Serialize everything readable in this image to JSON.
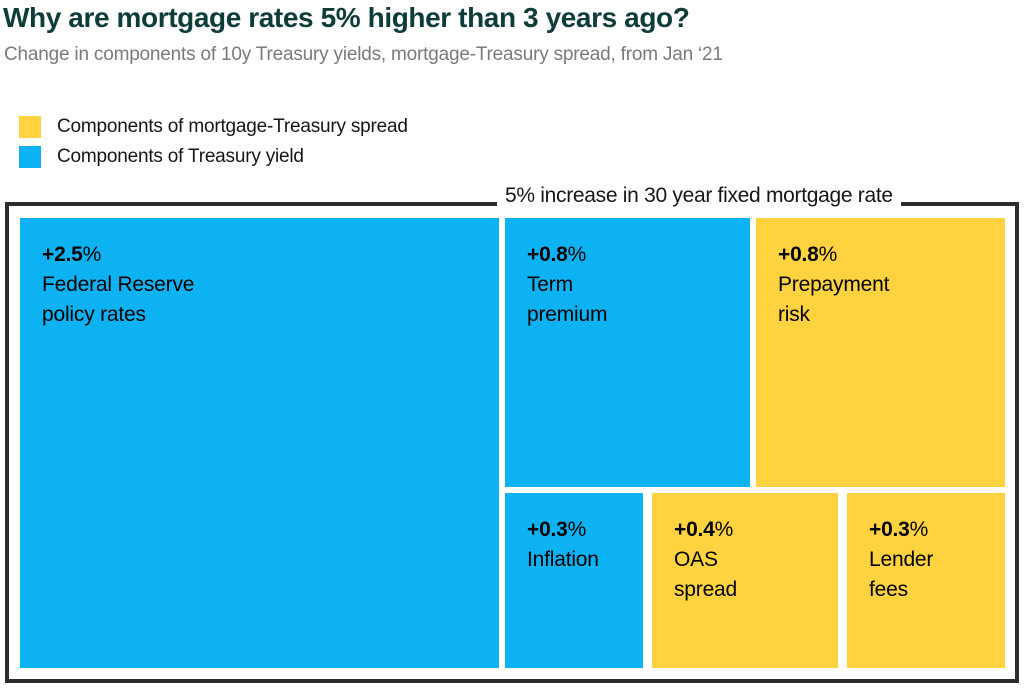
{
  "header": {
    "title": "Why are mortgage rates 5% higher than 3 years ago?",
    "subtitle": "Change in components of 10y Treasury yields, mortgage-Treasury spread, from Jan ‘21"
  },
  "legend": {
    "items": [
      {
        "label": "Components of mortgage-Treasury spread",
        "color": "#ffd23f"
      },
      {
        "label": "Components of Treasury yield",
        "color": "#0db2f3"
      }
    ]
  },
  "chart_data": {
    "type": "treemap",
    "annotation": "5% increase in 30 year fixed mortgage rate",
    "groups": [
      {
        "name": "Components of mortgage-Treasury spread",
        "color": "#ffd23f"
      },
      {
        "name": "Components of Treasury yield",
        "color": "#0db2f3"
      }
    ],
    "blocks": [
      {
        "id": "federal-reserve-policy-rates",
        "group": "Treasury yield",
        "value": 2.5,
        "display_value": "+2.5",
        "unit": "%",
        "line1": "Federal Reserve",
        "line2": "policy rates",
        "color": "#0db2f3"
      },
      {
        "id": "term-premium",
        "group": "Treasury yield",
        "value": 0.8,
        "display_value": "+0.8",
        "unit": "%",
        "line1": "Term",
        "line2": "premium",
        "color": "#0db2f3"
      },
      {
        "id": "prepayment-risk",
        "group": "mortgage-Treasury spread",
        "value": 0.8,
        "display_value": "+0.8",
        "unit": "%",
        "line1": "Prepayment",
        "line2": "risk",
        "color": "#ffd23f"
      },
      {
        "id": "inflation",
        "group": "Treasury yield",
        "value": 0.3,
        "display_value": "+0.3",
        "unit": "%",
        "line1": "Inflation",
        "line2": "",
        "color": "#0db2f3"
      },
      {
        "id": "oas-spread",
        "group": "mortgage-Treasury spread",
        "value": 0.4,
        "display_value": "+0.4",
        "unit": "%",
        "line1": "OAS",
        "line2": "spread",
        "color": "#ffd23f"
      },
      {
        "id": "lender-fees",
        "group": "mortgage-Treasury spread",
        "value": 0.3,
        "display_value": "+0.3",
        "unit": "%",
        "line1": "Lender",
        "line2": "fees",
        "color": "#ffd23f"
      }
    ]
  }
}
